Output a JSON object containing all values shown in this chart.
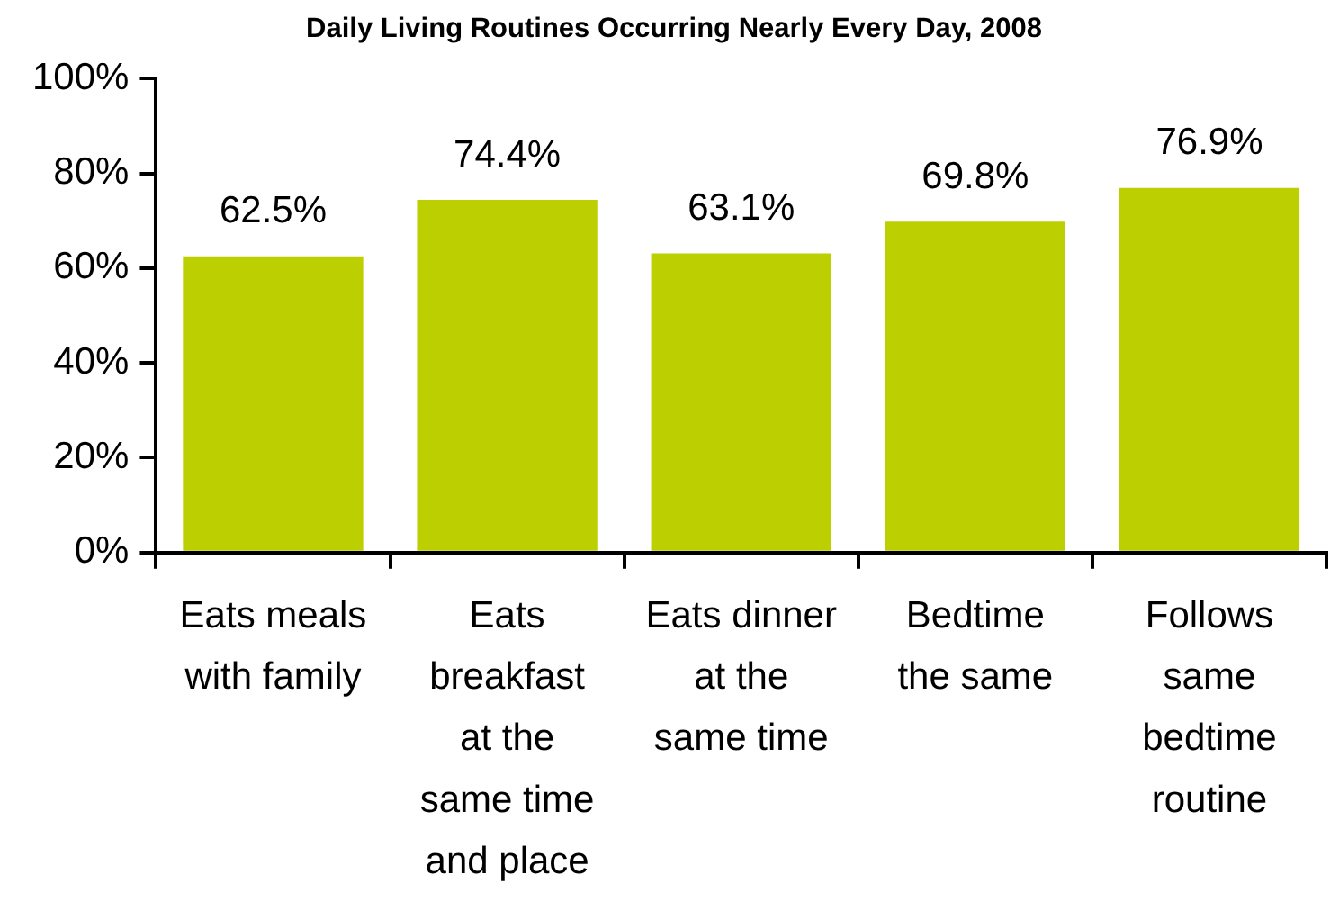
{
  "chart_data": {
    "type": "bar",
    "title": "Daily Living Routines Occurring Nearly Every Day, 2008",
    "categories": [
      "Eats meals with family",
      "Eats breakfast at the same time and place",
      "Eats dinner at the same time",
      "Bedtime the same",
      "Follows same bedtime routine"
    ],
    "values": [
      62.5,
      74.4,
      63.1,
      69.8,
      76.9
    ],
    "color": "#bccf00",
    "value_labels": [
      "62.5%",
      "74.4%",
      "63.1%",
      "69.8%",
      "76.9%"
    ],
    "ylim": [
      0,
      100
    ],
    "yticks": [
      {
        "value": 0,
        "label": "0%"
      },
      {
        "value": 20,
        "label": "20%"
      },
      {
        "value": 40,
        "label": "40%"
      },
      {
        "value": 60,
        "label": "60%"
      },
      {
        "value": 80,
        "label": "80%"
      },
      {
        "value": 100,
        "label": "100%"
      }
    ],
    "grid": false
  }
}
